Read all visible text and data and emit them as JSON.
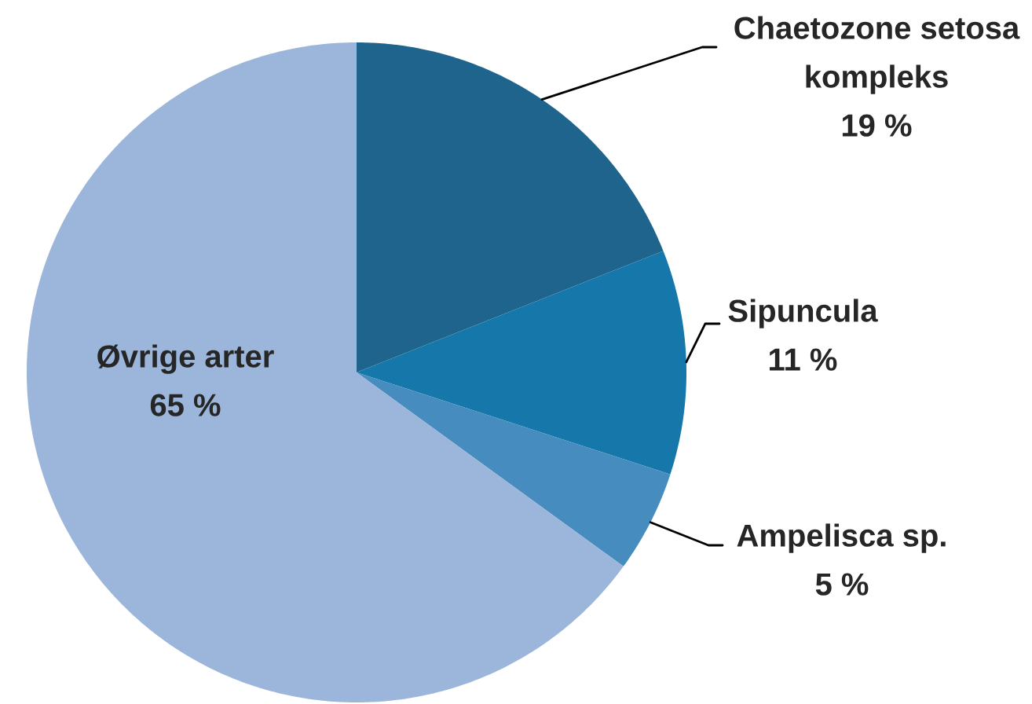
{
  "chart_data": {
    "type": "pie",
    "categories": [
      "Chaetozone setosa kompleks",
      "Sipuncula",
      "Ampelisca sp.",
      "Øvrige arter"
    ],
    "values": [
      19,
      11,
      5,
      65
    ],
    "colors": [
      "#1e648c",
      "#1678aa",
      "#468cbe",
      "#9bb6da"
    ],
    "value_labels": [
      "19 %",
      "11 %",
      "5 %",
      "65 %"
    ]
  }
}
